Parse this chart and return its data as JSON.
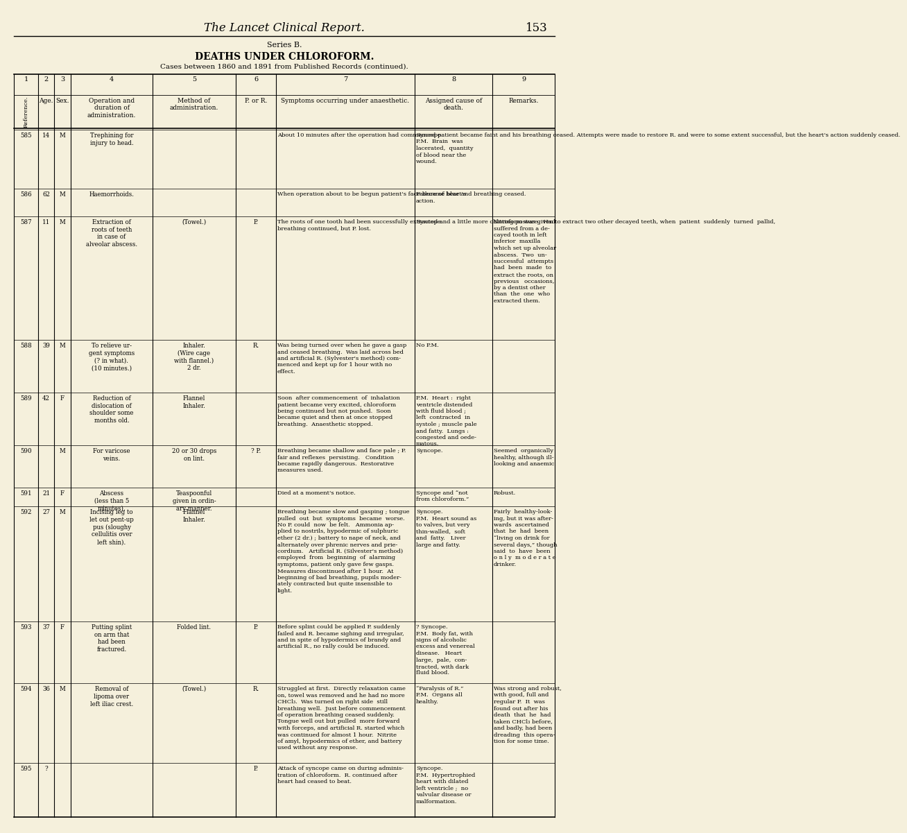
{
  "bg_color": "#f5f0dc",
  "page_title": "The Lancet Clinical Report.",
  "page_number": "153",
  "series_title": "Series B.",
  "main_title": "Deaths under Chloroform.",
  "subtitle": "Cases between 1860 and 1891 from Published Records (continued).",
  "col_subheaders": [
    "Reference.",
    "Age.",
    "Sex.",
    "Operation and\nduration of\nadministration.",
    "Method of\nadministration.",
    "P. or R.",
    "Symptoms occurring under anaesthetic.",
    "Assigned cause of\ndeath.",
    "Remarks."
  ],
  "rows": [
    {
      "ref": "585",
      "age": "14",
      "sex": "M",
      "operation": "Trephining for\ninjury to head.",
      "method": "",
      "por": "",
      "symptoms": "About 10 minutes after the operation had commenced patient became faint and his breathing ceased. Attempts were made to restore R. and were to some extent successful, but the heart's action suddenly ceased.",
      "cause": "Syncope.\nP.M.  Brain  was\nlacerated,  quantity\nof blood near the\nwound.",
      "remarks": ""
    },
    {
      "ref": "586",
      "age": "62",
      "sex": "M",
      "operation": "Haemorrhoids.",
      "method": "",
      "por": "",
      "symptoms": "When operation about to be begun patient's face became blue and breathing ceased.",
      "cause": "Failure of heart's\naction.",
      "remarks": ""
    },
    {
      "ref": "587",
      "age": "11",
      "sex": "M",
      "operation": "Extraction of\nroots of teeth\nin case of\nalveolar abscess.",
      "method": "(Towel.)",
      "por": "P.",
      "symptoms": "The roots of one tooth had been successfully extracted and a little more chloroform was given to extract two other decayed teeth, when  patient  suddenly  turned  pallid,\nbreathing continued, but P. lost.",
      "cause": "Syncope.",
      "remarks": "Sitting posture.  Had\nsuffered from a de-\ncayed tooth in left\ninferior  maxilla\nwhich set up alveolar\nabscess.  Two  un-\nsuccessful  attempts\nhad  been  made  to\nextract the roots, on\nprevious   occasions,\nby a dentist other\nthan  the  one  who\nextracted them."
    },
    {
      "ref": "588",
      "age": "39",
      "sex": "M",
      "operation": "To relieve ur-\ngent symptoms\n(? in what).\n(10 minutes.)",
      "method": "Inhaler.\n(Wire cage\nwith flannel.)\n2 dr.",
      "por": "R.",
      "symptoms": "Was being turned over when he gave a gasp\nand ceased breathing.  Was laid across bed\nand artificial R. (Sylvester's method) com-\nmenced and kept up for 1 hour with no\neffect.",
      "cause": "No P.M.",
      "remarks": ""
    },
    {
      "ref": "589",
      "age": "42",
      "sex": "F",
      "operation": "Reduction of\ndislocation of\nshoulder some\nmonths old.",
      "method": "Flannel\nInhaler.",
      "por": "",
      "symptoms": "Soon  after commencement  of  inhalation\npatient became very excited, chloroform\nbeing continued but not pushed.  Soon\nbecame quiet and then at once stopped\nbreathing.  Anaesthetic stopped.",
      "cause": "P.M.  Heart :  right\nventricle distended\nwith fluid blood ;\nleft  contracted  in\nsystole ; muscle pale\nand fatty.  Lungs :\ncongested and oede-\nmatous.",
      "remarks": ""
    },
    {
      "ref": "590",
      "age": "",
      "sex": "M",
      "operation": "For varicose\nveins.",
      "method": "20 or 30 drops\non lint.",
      "por": "? P.",
      "symptoms": "Breathing became shallow and face pale ; P.\nfair and reflexes  persisting.   Condition\nbecame rapidly dangerous.  Restorative\nmeasures used.",
      "cause": "Syncope.",
      "remarks": "Seemed  organically\nhealthy, although ill-\nlooking and anaemic."
    },
    {
      "ref": "591",
      "age": "21",
      "sex": "F",
      "operation": "Abscess\n(less than 5\nminutes).",
      "method": "Teaspoonful\ngiven in ordin-\nary manner.",
      "por": "",
      "symptoms": "Died at a moment's notice.",
      "cause": "Syncope and “not\nfrom chloroform.”",
      "remarks": "Robust."
    },
    {
      "ref": "592",
      "age": "27",
      "sex": "M",
      "operation": "Incising leg to\nlet out pent-up\npus (sloughy\ncellulitis over\nleft shin).",
      "method": "Flannel\nInhaler.",
      "por": "",
      "symptoms": "Breathing became slow and gasping ; tongue\npulled  out  but  symptoms  became  worse.\nNo P. could  now  be felt.   Ammonia ap-\nplied to nostrils, hypodermic of sulphuric\nether (2 dr.) ; battery to nape of neck, and\nalternately over phrenic nerves and prie-\ncordium.   Artificial R. (Silvester's method)\nemployed  from  beginning  of  alarming\nsymptoms, patient only gave few gasps.\nMeasures discontinued after 1 hour.  At\nbeginning of bad breathing, pupils moder-\nately contracted but quite insensible to\nlight.",
      "cause": "Syncope.\nP.M.  Heart sound as\nto valves, but very\nthin-walled,  soft\nand  fatty.   Liver\nlarge and fatty.",
      "remarks": "Fairly  healthy-look-\ning, but it was after-\nwards  ascertained\nthat  he  had  been\n“living on drink for\nseveral days,” though\nsaid  to  have  been\no n l y  m o d e r a t e\ndrinker."
    },
    {
      "ref": "593",
      "age": "37",
      "sex": "F",
      "operation": "Putting splint\non arm that\nhad been\nfractured.",
      "method": "Folded lint.",
      "por": "P.",
      "symptoms": "Before splint could be applied P. suddenly\nfailed and R. became sighing and irregular,\nand in spite of hypodermics of brandy and\nartificial R., no rally could be induced.",
      "cause": "? Syncope.\nP.M.  Body fat, with\nsigns of alcoholic\nexcess and venereal\ndisease.   Heart\nlarge,  pale,  con-\ntracted, with dark\nfluid blood.",
      "remarks": ""
    },
    {
      "ref": "594",
      "age": "36",
      "sex": "M",
      "operation": "Removal of\nlipoma over\nleft iliac crest.",
      "method": "(Towel.)",
      "por": "R.",
      "symptoms": "Struggled at first.  Directly relaxation came\non, towel was removed and he had no more\nCHCl₃.  Was turned on right side  still\nbreathing well.  Just before commencement\nof operation breathing ceased suddenly.\nTongue well out but pulled  more forward\nwith forceps, and artificial R. started which\nwas continued for almost 1 hour.  Nitrite\nof amyl, hypodermics of ether, and battery\nused without any response.",
      "cause": "“Paralysis of R.”\nP.M.  Organs all\nhealthy.",
      "remarks": "Was strong and robust,\nwith good, full and\nregular P.  It  was\nfound out after his\ndeath  that  he  had\ntaken CHCl₃ before,\nand badly, had been\ndreading  this opera-\ntion for some time."
    },
    {
      "ref": "595",
      "age": "?",
      "sex": "",
      "operation": "",
      "method": "",
      "por": "P.",
      "symptoms": "Attack of syncope came on during adminis-\ntration of chloroform.  R. continued after\nheart had ceased to beat.",
      "cause": "Syncope.\nP.M.  Hypertrophied\nheart with dilated\nleft ventricle ;  no\nvalvular disease or\nmalformation.",
      "remarks": ""
    }
  ]
}
